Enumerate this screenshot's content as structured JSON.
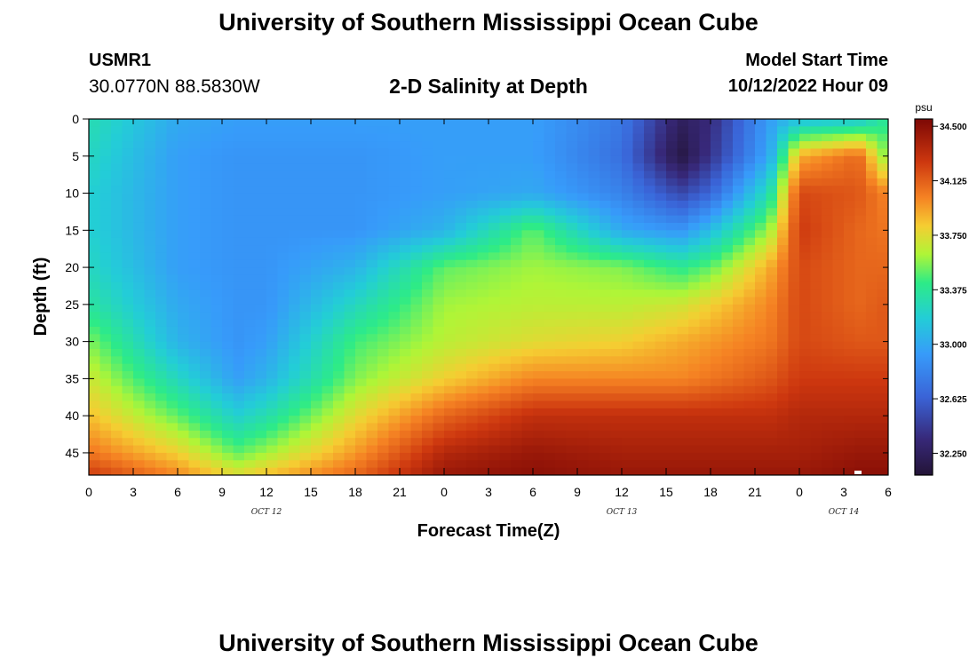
{
  "header": {
    "title": "University of Southern Mississippi Ocean Cube",
    "station_id": "USMR1",
    "station_coords": "30.0770N  88.5830W",
    "plot_title": "2-D Salinity at Depth",
    "model_start_label": "Model Start Time",
    "model_start_value": "10/12/2022 Hour 09"
  },
  "footer": {
    "title": "University of Southern Mississippi Ocean Cube"
  },
  "chart_data": {
    "type": "heatmap",
    "title": "2-D Salinity at Depth",
    "xlabel": "Forecast Time(Z)",
    "ylabel": "Depth (ft)",
    "x_range_hours": [
      0,
      54
    ],
    "x_tick_labels": [
      "0",
      "3",
      "6",
      "9",
      "12",
      "15",
      "18",
      "21",
      "0",
      "3",
      "6",
      "9",
      "12",
      "15",
      "18",
      "21",
      "0",
      "3",
      "6"
    ],
    "date_labels": [
      {
        "label": "OCT 12",
        "at_tick": "12"
      },
      {
        "label": "OCT 13",
        "at_tick": "12"
      },
      {
        "label": "OCT 14",
        "at_tick": "3"
      }
    ],
    "y_range": [
      0,
      48
    ],
    "y_inverted": true,
    "y_ticks": [
      0,
      5,
      10,
      15,
      20,
      25,
      30,
      35,
      40,
      45
    ],
    "colorbar": {
      "unit": "psu",
      "range": [
        32.1,
        34.55
      ],
      "tick_labels": [
        "34.500",
        "34.125",
        "33.750",
        "33.375",
        "33.000",
        "32.625",
        "32.250"
      ],
      "tick_values": [
        34.5,
        34.125,
        33.75,
        33.375,
        33.0,
        32.625,
        32.25
      ]
    },
    "hours": [
      0,
      6,
      10,
      12,
      18,
      24,
      30,
      36,
      40,
      42,
      46,
      48,
      52,
      54
    ],
    "depths": [
      0,
      5,
      10,
      15,
      20,
      25,
      30,
      35,
      40,
      45,
      48
    ],
    "values": [
      [
        33.3,
        33.0,
        32.95,
        32.95,
        32.95,
        32.95,
        32.95,
        32.75,
        32.25,
        32.35,
        32.95,
        33.1,
        33.15,
        33.4
      ],
      [
        33.25,
        32.95,
        32.9,
        32.9,
        32.9,
        32.95,
        32.95,
        32.7,
        32.15,
        32.4,
        33.0,
        33.9,
        34.1,
        33.5
      ],
      [
        33.2,
        32.95,
        32.9,
        32.9,
        32.9,
        32.95,
        33.0,
        32.8,
        32.5,
        32.65,
        33.3,
        34.2,
        34.15,
        34.0
      ],
      [
        33.2,
        32.95,
        32.9,
        32.9,
        32.9,
        33.05,
        33.5,
        33.0,
        32.9,
        33.1,
        33.6,
        34.25,
        34.1,
        34.05
      ],
      [
        33.25,
        32.95,
        32.9,
        32.9,
        33.05,
        33.5,
        33.6,
        33.55,
        33.4,
        33.5,
        33.9,
        34.2,
        34.1,
        34.1
      ],
      [
        33.35,
        33.0,
        32.9,
        32.9,
        33.25,
        33.6,
        33.65,
        33.65,
        33.7,
        33.8,
        34.0,
        34.2,
        34.1,
        34.15
      ],
      [
        33.55,
        33.05,
        32.9,
        32.95,
        33.45,
        33.65,
        33.75,
        33.8,
        33.9,
        33.95,
        34.05,
        34.2,
        34.15,
        34.15
      ],
      [
        33.7,
        33.25,
        32.95,
        33.05,
        33.55,
        33.8,
        34.0,
        34.0,
        34.0,
        34.05,
        34.15,
        34.25,
        34.25,
        34.25
      ],
      [
        33.85,
        33.5,
        33.2,
        33.3,
        33.75,
        34.1,
        34.3,
        34.3,
        34.3,
        34.3,
        34.3,
        34.35,
        34.35,
        34.35
      ],
      [
        34.05,
        33.8,
        33.5,
        33.6,
        33.95,
        34.35,
        34.45,
        34.4,
        34.4,
        34.4,
        34.4,
        34.4,
        34.45,
        34.45
      ],
      [
        34.25,
        34.0,
        33.75,
        33.85,
        34.1,
        34.45,
        34.5,
        34.45,
        34.45,
        34.45,
        34.45,
        34.45,
        34.5,
        34.5
      ]
    ]
  }
}
